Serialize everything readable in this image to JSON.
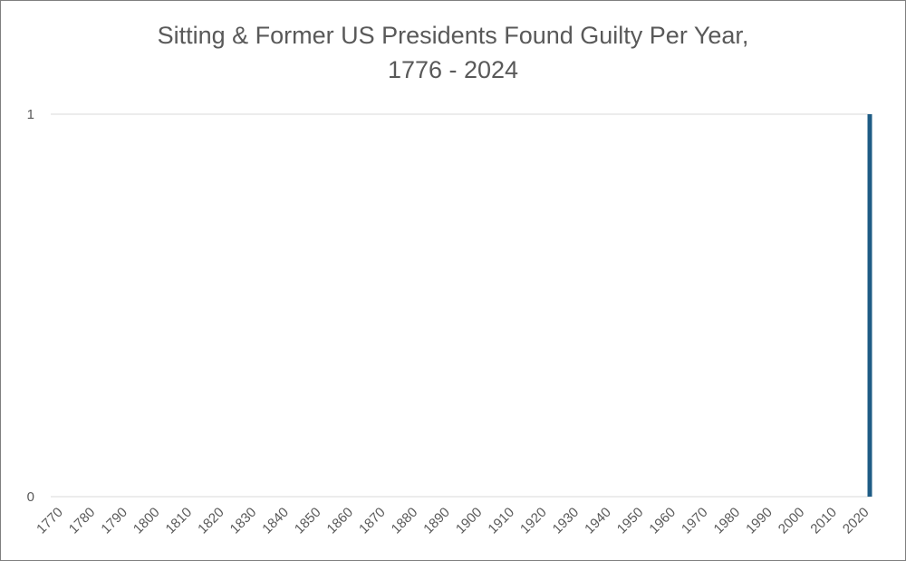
{
  "chart_data": {
    "type": "bar",
    "title": "Sitting & Former US Presidents Found Guilty Per Year,",
    "subtitle": "1776 - 2024",
    "xlabel": "",
    "ylabel": "",
    "x_range": [
      1770,
      2024
    ],
    "ylim": [
      0,
      1
    ],
    "y_ticks": [
      "0",
      "1"
    ],
    "x_ticks": [
      "1770",
      "1780",
      "1790",
      "1800",
      "1810",
      "1820",
      "1830",
      "1840",
      "1850",
      "1860",
      "1870",
      "1880",
      "1890",
      "1900",
      "1910",
      "1920",
      "1930",
      "1940",
      "1950",
      "1960",
      "1970",
      "1980",
      "1990",
      "2000",
      "2010",
      "2020"
    ],
    "series": [
      {
        "values_note_free": true,
        "points": [
          {
            "x": 2024,
            "y": 1
          }
        ]
      }
    ],
    "grid": "horizontal",
    "legend": "none",
    "bar_color": "#1f5c85",
    "grid_color": "#d9d9d9",
    "text_color": "#595959"
  }
}
